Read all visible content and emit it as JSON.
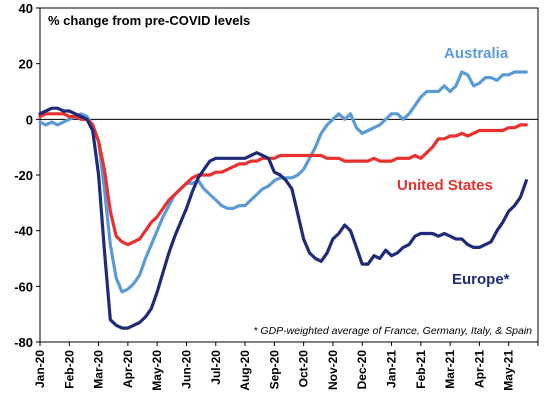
{
  "chart_data": {
    "type": "line",
    "title": "% change from pre-COVID levels",
    "xlabel": "",
    "ylabel": "",
    "ylim": [
      -80,
      40
    ],
    "yticks": [
      -80,
      -60,
      -40,
      -20,
      0,
      20,
      40
    ],
    "grid": false,
    "xtick_labels": [
      "Jan-20",
      "Feb-20",
      "Mar-20",
      "Apr-20",
      "May-20",
      "Jun-20",
      "Jul-20",
      "Aug-20",
      "Sep-20",
      "Oct-20",
      "Nov-20",
      "Dec-20",
      "Jan-21",
      "Feb-21",
      "Mar-21",
      "Apr-21",
      "May-21"
    ],
    "footnote": "* GDP-weighted average of France, Germany, Italy, & Spain",
    "series": [
      {
        "name": "Australia",
        "color": "#5b9bd5",
        "x": [
          0,
          0.2,
          0.4,
          0.6,
          0.8,
          1.0,
          1.2,
          1.4,
          1.6,
          1.8,
          2.0,
          2.2,
          2.4,
          2.6,
          2.8,
          3.0,
          3.2,
          3.4,
          3.6,
          3.8,
          4.0,
          4.2,
          4.4,
          4.6,
          4.8,
          5.0,
          5.2,
          5.4,
          5.6,
          5.8,
          6.0,
          6.2,
          6.4,
          6.6,
          6.8,
          7.0,
          7.2,
          7.4,
          7.6,
          7.8,
          8.0,
          8.2,
          8.4,
          8.6,
          8.8,
          9.0,
          9.2,
          9.4,
          9.6,
          9.8,
          10.0,
          10.2,
          10.4,
          10.6,
          10.8,
          11.0,
          11.2,
          11.4,
          11.6,
          11.8,
          12.0,
          12.2,
          12.4,
          12.6,
          12.8,
          13.0,
          13.2,
          13.4,
          13.6,
          13.8,
          14.0,
          14.2,
          14.4,
          14.6,
          14.8,
          15.0,
          15.2,
          15.4,
          15.6,
          15.8,
          16.0,
          16.2,
          16.4,
          16.6
        ],
        "values": [
          -1,
          -2,
          -1,
          -2,
          -1,
          0,
          1,
          2,
          1,
          -2,
          -8,
          -25,
          -45,
          -57,
          -62,
          -61,
          -59,
          -56,
          -50,
          -45,
          -40,
          -35,
          -31,
          -27,
          -25,
          -23,
          -23,
          -22,
          -25,
          -27,
          -29,
          -31,
          -32,
          -32,
          -31,
          -31,
          -29,
          -27,
          -25,
          -24,
          -22,
          -21,
          -21,
          -21,
          -20,
          -18,
          -14,
          -10,
          -5,
          -2,
          0,
          2,
          0,
          2,
          -3,
          -5,
          -4,
          -3,
          -2,
          0,
          2,
          2,
          0,
          2,
          5,
          8,
          10,
          10,
          10,
          12,
          10,
          12,
          17,
          16,
          12,
          13,
          15,
          15,
          14,
          16,
          16,
          17,
          17,
          17
        ]
      },
      {
        "name": "United States",
        "color": "#e8312f",
        "x": [
          0,
          0.2,
          0.4,
          0.6,
          0.8,
          1.0,
          1.2,
          1.4,
          1.6,
          1.8,
          2.0,
          2.2,
          2.4,
          2.6,
          2.8,
          3.0,
          3.2,
          3.4,
          3.6,
          3.8,
          4.0,
          4.2,
          4.4,
          4.6,
          4.8,
          5.0,
          5.2,
          5.4,
          5.6,
          5.8,
          6.0,
          6.2,
          6.4,
          6.6,
          6.8,
          7.0,
          7.2,
          7.4,
          7.6,
          7.8,
          8.0,
          8.2,
          8.4,
          8.6,
          8.8,
          9.0,
          9.2,
          9.4,
          9.6,
          9.8,
          10.0,
          10.2,
          10.4,
          10.6,
          10.8,
          11.0,
          11.2,
          11.4,
          11.6,
          11.8,
          12.0,
          12.2,
          12.4,
          12.6,
          12.8,
          13.0,
          13.2,
          13.4,
          13.6,
          13.8,
          14.0,
          14.2,
          14.4,
          14.6,
          14.8,
          15.0,
          15.2,
          15.4,
          15.6,
          15.8,
          16.0,
          16.2,
          16.4,
          16.6
        ],
        "values": [
          1,
          2,
          2,
          2,
          2,
          1,
          1,
          0,
          0,
          -2,
          -8,
          -18,
          -33,
          -42,
          -44,
          -45,
          -44,
          -43,
          -40,
          -37,
          -35,
          -32,
          -29,
          -27,
          -25,
          -23,
          -21,
          -20,
          -20,
          -20,
          -19,
          -19,
          -18,
          -17,
          -16,
          -16,
          -15,
          -15,
          -14,
          -14,
          -14,
          -13,
          -13,
          -13,
          -13,
          -13,
          -13,
          -13,
          -13,
          -14,
          -14,
          -14,
          -15,
          -15,
          -15,
          -15,
          -15,
          -14,
          -15,
          -15,
          -15,
          -14,
          -14,
          -14,
          -13,
          -14,
          -12,
          -10,
          -7,
          -7,
          -6,
          -6,
          -5,
          -6,
          -5,
          -4,
          -4,
          -4,
          -4,
          -4,
          -3,
          -3,
          -2,
          -2
        ]
      },
      {
        "name": "Europe*",
        "color": "#1f2a78",
        "x": [
          0,
          0.2,
          0.4,
          0.6,
          0.8,
          1.0,
          1.2,
          1.4,
          1.6,
          1.8,
          2.0,
          2.2,
          2.4,
          2.6,
          2.8,
          3.0,
          3.2,
          3.4,
          3.6,
          3.8,
          4.0,
          4.2,
          4.4,
          4.6,
          4.8,
          5.0,
          5.2,
          5.4,
          5.6,
          5.8,
          6.0,
          6.2,
          6.4,
          6.6,
          6.8,
          7.0,
          7.2,
          7.4,
          7.6,
          7.8,
          8.0,
          8.2,
          8.4,
          8.6,
          8.8,
          9.0,
          9.2,
          9.4,
          9.6,
          9.8,
          10.0,
          10.2,
          10.4,
          10.6,
          10.8,
          11.0,
          11.2,
          11.4,
          11.6,
          11.8,
          12.0,
          12.2,
          12.4,
          12.6,
          12.8,
          13.0,
          13.2,
          13.4,
          13.6,
          13.8,
          14.0,
          14.2,
          14.4,
          14.6,
          14.8,
          15.0,
          15.2,
          15.4,
          15.6,
          15.8,
          16.0,
          16.2,
          16.4,
          16.6
        ],
        "values": [
          2,
          3,
          4,
          4,
          3,
          3,
          2,
          1,
          0,
          -4,
          -20,
          -47,
          -72,
          -74,
          -75,
          -75,
          -74,
          -73,
          -71,
          -68,
          -62,
          -55,
          -48,
          -42,
          -37,
          -32,
          -26,
          -21,
          -18,
          -15,
          -14,
          -14,
          -14,
          -14,
          -14,
          -14,
          -13,
          -12,
          -13,
          -14,
          -19,
          -20,
          -22,
          -25,
          -34,
          -43,
          -48,
          -50,
          -51,
          -48,
          -43,
          -41,
          -38,
          -40,
          -46,
          -52,
          -52,
          -49,
          -50,
          -47,
          -49,
          -48,
          -46,
          -45,
          -42,
          -41,
          -41,
          -41,
          -42,
          -41,
          -42,
          -43,
          -43,
          -45,
          -46,
          -46,
          -45,
          -44,
          -40,
          -37,
          -33,
          -31,
          -28,
          -22
        ]
      }
    ],
    "series_labels": [
      "Australia",
      "United States",
      "Europe*"
    ]
  }
}
